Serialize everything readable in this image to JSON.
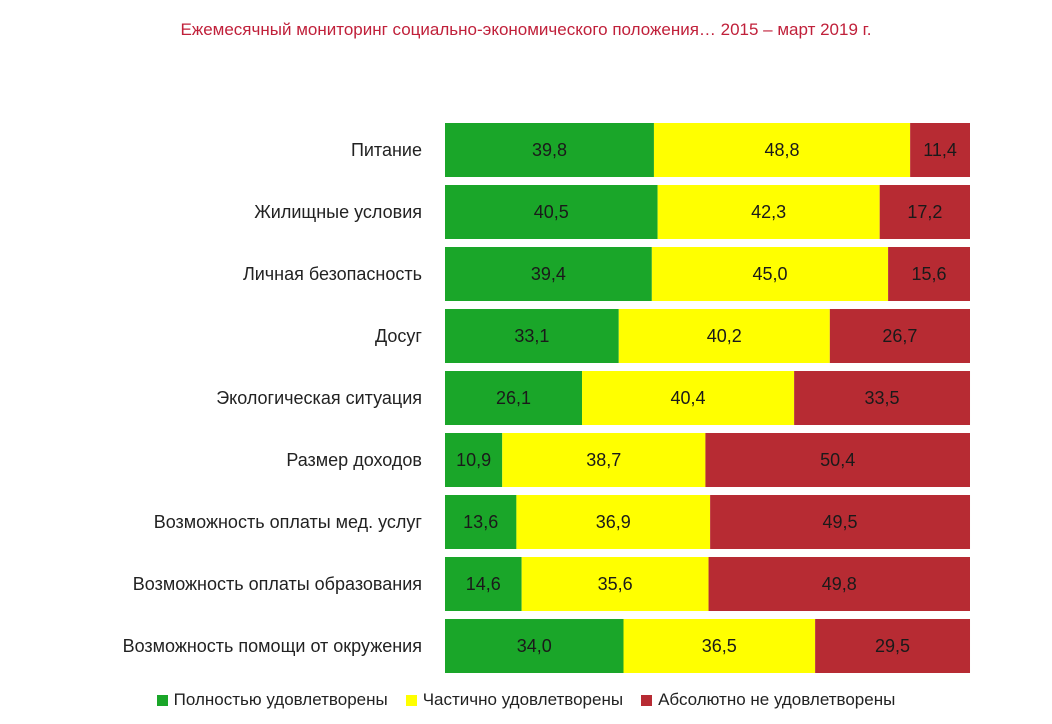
{
  "chart_data": {
    "type": "bar",
    "orientation": "horizontal",
    "stacked": true,
    "title": "Ежемесячный мониторинг социально-экономического положения… 2015 – март 2019 г.",
    "categories": [
      "Питание",
      "Жилищные условия",
      "Личная безопасность",
      "Досуг",
      "Экологическая ситуация",
      "Размер доходов",
      "Возможность оплаты мед. услуг",
      "Возможность оплаты образования",
      "Возможность помощи от окружения"
    ],
    "series": [
      {
        "name": "Полностью удовлетворены",
        "color": "#1aa629",
        "values": [
          39.8,
          40.5,
          39.4,
          33.1,
          26.1,
          10.9,
          13.6,
          14.6,
          34.0
        ],
        "labels": [
          "39,8",
          "40,5",
          "39,4",
          "33,1",
          "26,1",
          "10,9",
          "13,6",
          "14,6",
          "34,0"
        ]
      },
      {
        "name": "Частично удовлетворены",
        "color": "#ffff00",
        "values": [
          48.8,
          42.3,
          45.0,
          40.2,
          40.4,
          38.7,
          36.9,
          35.6,
          36.5
        ],
        "labels": [
          "48,8",
          "42,3",
          "45,0",
          "40,2",
          "40,4",
          "38,7",
          "36,9",
          "35,6",
          "36,5"
        ]
      },
      {
        "name": "Абсолютно не удовлетворены",
        "color": "#b72b33",
        "values": [
          11.4,
          17.2,
          15.6,
          26.7,
          33.5,
          50.4,
          49.5,
          49.8,
          29.5
        ],
        "labels": [
          "11,4",
          "17,2",
          "15,6",
          "26,7",
          "33,5",
          "50,4",
          "49,5",
          "49,8",
          "29,5"
        ]
      }
    ],
    "legend_position": "bottom",
    "grid": false
  }
}
